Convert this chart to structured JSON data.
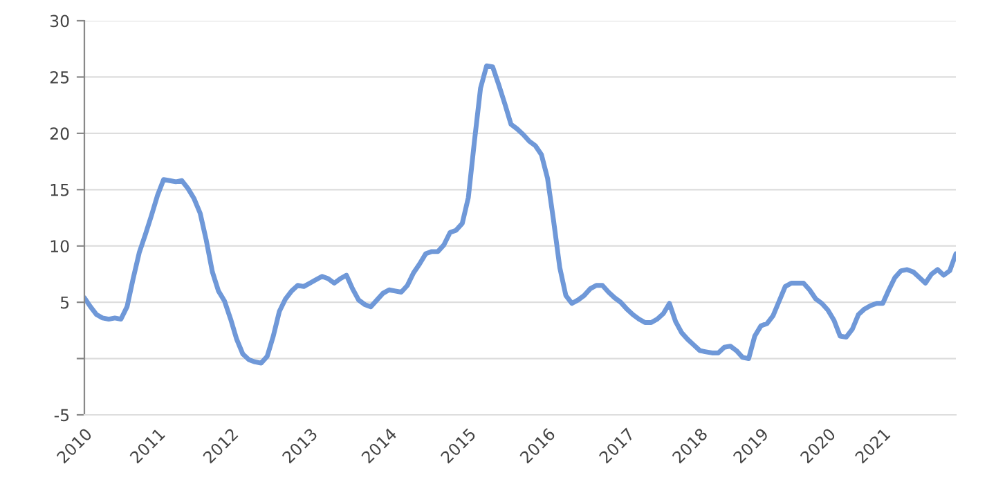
{
  "chart_data": {
    "type": "line",
    "color": "#6f98d8",
    "categories": [
      "2010",
      null,
      null,
      null,
      null,
      null,
      null,
      null,
      null,
      null,
      null,
      null,
      "2011",
      null,
      null,
      null,
      null,
      null,
      null,
      null,
      null,
      null,
      null,
      null,
      "2012",
      null,
      null,
      null,
      null,
      null,
      null,
      null,
      null,
      null,
      null,
      null,
      null,
      "2013",
      null,
      null,
      null,
      null,
      null,
      null,
      null,
      null,
      null,
      null,
      null,
      null,
      "2014",
      null,
      null,
      null,
      null,
      null,
      null,
      null,
      null,
      null,
      null,
      null,
      null,
      "2015",
      null,
      null,
      null,
      null,
      null,
      null,
      null,
      null,
      null,
      null,
      null,
      null,
      "2016",
      null,
      null,
      null,
      null,
      null,
      null,
      null,
      null,
      null,
      null,
      null,
      null,
      "2017",
      null,
      null,
      null,
      null,
      null,
      null,
      null,
      null,
      null,
      null,
      null,
      "2018",
      null,
      null,
      null,
      null,
      null,
      null,
      null,
      null,
      null,
      "2019",
      null,
      null,
      null,
      null,
      null,
      null,
      null,
      null,
      null,
      null,
      "2020",
      null,
      null,
      null,
      null,
      null,
      null,
      null,
      null,
      "2021",
      null,
      null,
      null,
      null,
      null,
      null,
      null,
      null,
      null,
      null,
      null,
      null
    ],
    "values": [
      5.4,
      4.6,
      3.9,
      3.6,
      3.5,
      3.6,
      3.5,
      4.6,
      7.1,
      9.4,
      11.0,
      12.7,
      14.5,
      15.9,
      15.8,
      15.7,
      15.8,
      15.1,
      14.2,
      12.9,
      10.5,
      7.7,
      6.0,
      5.1,
      3.5,
      1.7,
      0.4,
      -0.1,
      -0.3,
      -0.4,
      0.2,
      2.0,
      4.2,
      5.3,
      6.0,
      6.5,
      6.4,
      6.7,
      7.0,
      7.3,
      7.1,
      6.7,
      7.1,
      7.4,
      6.2,
      5.2,
      4.8,
      4.6,
      5.2,
      5.8,
      6.1,
      6.0,
      5.9,
      6.5,
      7.6,
      8.4,
      9.3,
      9.5,
      9.5,
      10.1,
      11.2,
      11.4,
      12.0,
      14.3,
      19.3,
      24.0,
      26.0,
      25.9,
      24.3,
      22.6,
      20.8,
      20.4,
      19.9,
      19.3,
      18.9,
      18.1,
      16.0,
      12.2,
      8.1,
      5.6,
      4.9,
      5.2,
      5.6,
      6.2,
      6.5,
      6.5,
      5.9,
      5.4,
      5.0,
      4.4,
      3.9,
      3.5,
      3.2,
      3.2,
      3.5,
      4.0,
      4.9,
      3.3,
      2.3,
      1.7,
      1.2,
      0.7,
      0.6,
      0.5,
      0.5,
      1.0,
      1.1,
      0.7,
      0.1,
      0.0,
      2.0,
      2.9,
      3.1,
      3.8,
      5.1,
      6.4,
      6.7,
      6.7,
      6.7,
      6.1,
      5.3,
      4.9,
      4.3,
      3.4,
      2.0,
      1.9,
      2.6,
      3.9,
      4.4,
      4.7,
      4.9,
      4.9,
      6.1,
      7.2,
      7.8,
      7.9,
      7.7,
      7.2,
      6.7,
      7.5,
      7.9,
      7.4,
      7.8,
      9.3
    ],
    "ylim": [
      -5,
      30
    ],
    "yticks": [
      -5,
      {
        "value": 0,
        "label": null
      },
      5,
      10,
      15,
      20,
      25,
      30
    ],
    "grid": "y",
    "line_style": "solid",
    "marker": "none",
    "legend": false
  }
}
